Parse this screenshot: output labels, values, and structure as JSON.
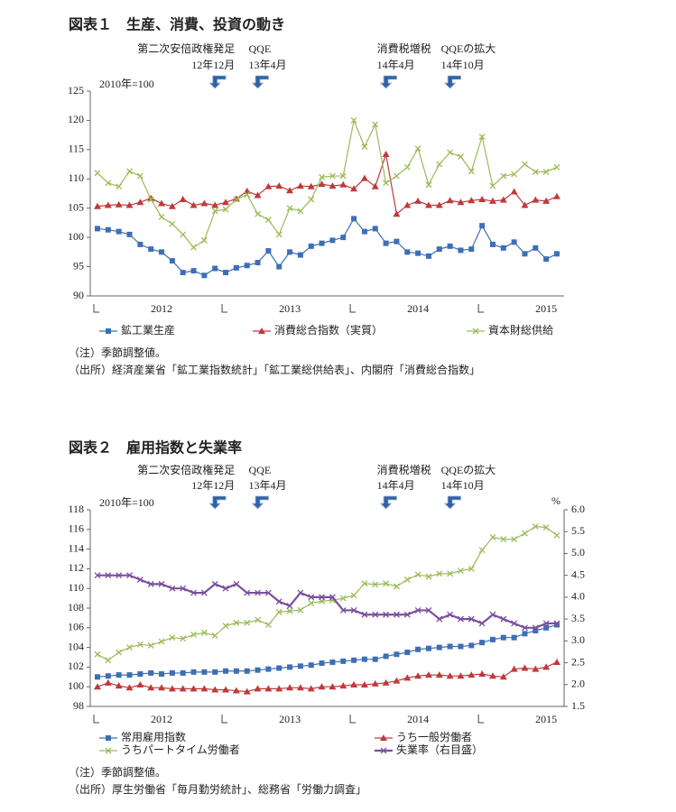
{
  "chart_data": [
    {
      "type": "line",
      "title": "図表１　生産、消費、投資の動き",
      "unit_label": "2010年=100",
      "categories": [
        null,
        null,
        null,
        null,
        null,
        null,
        "2012",
        null,
        null,
        null,
        null,
        null,
        null,
        null,
        null,
        null,
        null,
        null,
        "2013",
        null,
        null,
        null,
        null,
        null,
        null,
        null,
        null,
        null,
        null,
        null,
        "2014",
        null,
        null,
        null,
        null,
        null,
        null,
        null,
        null,
        null,
        null,
        null,
        "2015",
        null
      ],
      "ylim": [
        90,
        125
      ],
      "yticks": [
        90,
        95,
        100,
        105,
        110,
        115,
        120,
        125
      ],
      "annotations": [
        {
          "label": "第二次安倍政権発足",
          "date": "12年12月"
        },
        {
          "label": "QQE",
          "date": "13年4月"
        },
        {
          "label": "消費税増税",
          "date": "14年4月"
        },
        {
          "label": "QQEの拡大",
          "date": "14年10月"
        }
      ],
      "series": [
        {
          "name": "鉱工業生産",
          "color": "#3d6fb5",
          "marker": "square",
          "values": [
            101.5,
            101.3,
            101.0,
            100.5,
            98.8,
            98.0,
            97.5,
            96.0,
            94.0,
            94.3,
            93.5,
            94.7,
            94.0,
            94.8,
            95.2,
            95.7,
            97.7,
            95.0,
            97.5,
            97.0,
            98.5,
            99.0,
            99.5,
            100.0,
            103.2,
            101.0,
            101.5,
            99.0,
            99.3,
            97.5,
            97.3,
            96.8,
            98.0,
            98.5,
            97.8,
            98.0,
            102.0,
            98.8,
            98.2,
            99.2,
            97.2,
            98.2,
            96.3,
            97.2
          ]
        },
        {
          "name": "消費総合指数（実質）",
          "color": "#c0393b",
          "marker": "triangle",
          "values": [
            105.3,
            105.5,
            105.6,
            105.5,
            106.0,
            106.7,
            105.8,
            105.3,
            106.5,
            105.5,
            105.8,
            105.5,
            106.0,
            106.6,
            107.9,
            107.2,
            108.7,
            108.8,
            108.0,
            108.8,
            108.7,
            109.1,
            108.8,
            109.0,
            108.3,
            110.1,
            108.7,
            114.2,
            104.0,
            105.5,
            106.2,
            105.5,
            105.5,
            106.3,
            106.0,
            106.3,
            106.5,
            106.2,
            106.4,
            107.8,
            105.5,
            106.4,
            106.2,
            107.0
          ]
        },
        {
          "name": "資本財総供給",
          "color": "#9bbb59",
          "marker": "x",
          "values": [
            111.0,
            109.3,
            108.7,
            111.3,
            110.5,
            106.5,
            103.5,
            102.3,
            100.5,
            98.3,
            99.5,
            104.5,
            104.8,
            106.5,
            107.3,
            104.0,
            103.0,
            100.5,
            105.0,
            104.5,
            106.5,
            110.3,
            110.5,
            110.5,
            120.0,
            115.5,
            119.3,
            109.3,
            110.5,
            112.0,
            115.2,
            109.0,
            112.5,
            114.5,
            113.8,
            111.3,
            117.2,
            108.8,
            110.5,
            110.8,
            112.5,
            111.2,
            111.2,
            112.0
          ]
        }
      ],
      "notes": [
        "（注）季節調整値。",
        "（出所）経済産業省「鉱工業指数統計」「鉱工業総供給表」、内閣府「消費総合指数」"
      ]
    },
    {
      "type": "line",
      "title": "図表２　雇用指数と失業率",
      "unit_label": "2010年=100",
      "y2_unit_label": "%",
      "categories": [
        null,
        null,
        null,
        null,
        null,
        null,
        "2012",
        null,
        null,
        null,
        null,
        null,
        null,
        null,
        null,
        null,
        null,
        null,
        "2013",
        null,
        null,
        null,
        null,
        null,
        null,
        null,
        null,
        null,
        null,
        null,
        "2014",
        null,
        null,
        null,
        null,
        null,
        null,
        null,
        null,
        null,
        null,
        null,
        "2015",
        null
      ],
      "ylim": [
        98,
        118
      ],
      "yticks": [
        98,
        100,
        102,
        104,
        106,
        108,
        110,
        112,
        114,
        116,
        118
      ],
      "y2lim": [
        1.5,
        6.0
      ],
      "y2ticks": [
        1.5,
        {
          "value": 2,
          "label": "2.0"
        },
        2.5,
        {
          "value": 3,
          "label": "3.0"
        },
        3.5,
        {
          "value": 4,
          "label": "4.0"
        },
        4.5,
        {
          "value": 5,
          "label": "5.0"
        },
        5.5,
        {
          "value": 6,
          "label": "6.0"
        }
      ],
      "annotations": [
        {
          "label": "第二次安倍政権発足",
          "date": "12年12月"
        },
        {
          "label": "QQE",
          "date": "13年4月"
        },
        {
          "label": "消費税増税",
          "date": "14年4月"
        },
        {
          "label": "QQEの拡大",
          "date": "14年10月"
        }
      ],
      "series": [
        {
          "name": "常用雇用指数",
          "color": "#3d6fb5",
          "marker": "square",
          "values": [
            101.0,
            101.1,
            101.2,
            101.2,
            101.3,
            101.4,
            101.3,
            101.4,
            101.4,
            101.5,
            101.5,
            101.5,
            101.6,
            101.6,
            101.6,
            101.7,
            101.8,
            101.9,
            102.0,
            102.1,
            102.2,
            102.4,
            102.5,
            102.6,
            102.7,
            102.8,
            102.8,
            103.1,
            103.3,
            103.5,
            103.8,
            103.9,
            104.0,
            104.1,
            104.1,
            104.2,
            104.5,
            104.8,
            105.0,
            105.0,
            105.4,
            105.7,
            106.0,
            106.3
          ]
        },
        {
          "name": "うち一般労働者",
          "color": "#c0393b",
          "marker": "triangle",
          "values": [
            100.0,
            100.4,
            100.1,
            99.9,
            100.2,
            99.9,
            99.9,
            99.8,
            99.8,
            99.8,
            99.8,
            99.7,
            99.7,
            99.6,
            99.5,
            99.8,
            99.8,
            99.8,
            99.9,
            99.9,
            99.8,
            100.0,
            100.0,
            100.1,
            100.2,
            100.2,
            100.3,
            100.4,
            100.6,
            100.9,
            101.1,
            101.2,
            101.2,
            101.1,
            101.1,
            101.2,
            101.3,
            101.1,
            101.0,
            101.8,
            101.9,
            101.8,
            102.0,
            102.5
          ]
        },
        {
          "name": "うちパートタイム労働者",
          "color": "#9bbb59",
          "marker": "x",
          "values": [
            103.3,
            102.7,
            103.5,
            104.0,
            104.3,
            104.2,
            104.6,
            105.0,
            104.9,
            105.3,
            105.5,
            105.2,
            106.2,
            106.5,
            106.5,
            106.8,
            106.3,
            107.6,
            107.7,
            107.8,
            108.5,
            108.7,
            108.8,
            109.0,
            109.3,
            110.5,
            110.4,
            110.5,
            110.2,
            110.9,
            111.4,
            111.2,
            111.5,
            111.5,
            111.8,
            112.0,
            113.9,
            115.2,
            115.0,
            115.0,
            115.6,
            116.3,
            116.2,
            115.4
          ]
        },
        {
          "name": "失業率（右目盛）",
          "color": "#7a4f9e",
          "marker": "x",
          "axis": "y2",
          "values": [
            4.5,
            4.5,
            4.5,
            4.5,
            4.4,
            4.3,
            4.3,
            4.2,
            4.2,
            4.1,
            4.1,
            4.3,
            4.2,
            4.3,
            4.1,
            4.1,
            4.1,
            3.9,
            3.8,
            4.1,
            4.0,
            4.0,
            4.0,
            3.7,
            3.7,
            3.6,
            3.6,
            3.6,
            3.6,
            3.6,
            3.7,
            3.7,
            3.5,
            3.6,
            3.5,
            3.5,
            3.4,
            3.6,
            3.5,
            3.4,
            3.3,
            3.3,
            3.4,
            3.4
          ]
        }
      ],
      "notes": [
        "（注）季節調整値。",
        "（出所）厚生労働省「毎月勤労統計」、総務省「労働力調査」"
      ]
    }
  ]
}
